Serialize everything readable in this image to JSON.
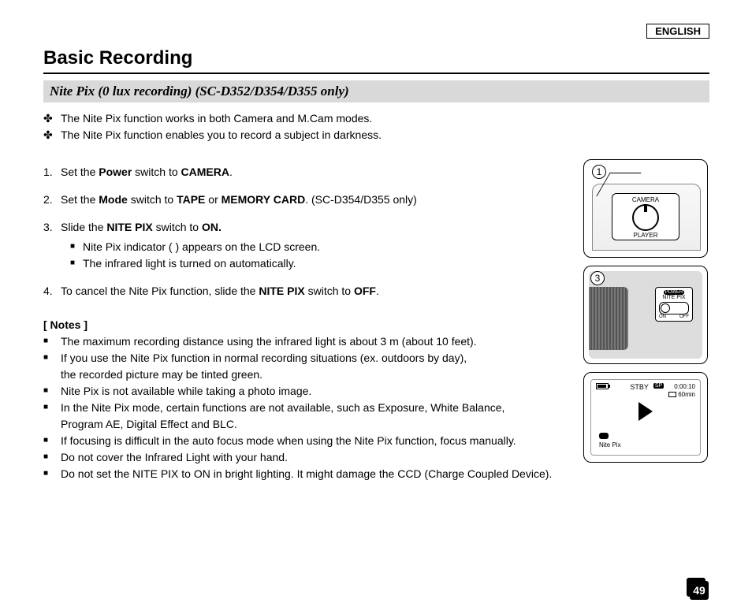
{
  "language_label": "ENGLISH",
  "section_title": "Basic Recording",
  "subsection_title": "Nite Pix (0 lux recording) (SC-D352/D354/D355 only)",
  "intro_marker": "✤",
  "intro": [
    "The Nite Pix function works in both Camera and M.Cam modes.",
    "The Nite Pix function enables you to record a subject in darkness."
  ],
  "steps": [
    {
      "num": "1.",
      "html": "Set the <b>Power</b> switch to <b>CAMERA</b>."
    },
    {
      "num": "2.",
      "html": "Set the <b>Mode</b> switch to <b>TAPE</b> or <b>MEMORY CARD</b>. (SC-D354/D355 only)"
    },
    {
      "num": "3.",
      "html": "Slide the <b>NITE PIX</b> switch to <b>ON.</b>",
      "sub": [
        "Nite Pix indicator (      ) appears on the LCD screen.",
        "The infrared light is turned on automatically."
      ]
    },
    {
      "num": "4.",
      "html": "To cancel the Nite Pix function, slide the <b>NITE PIX</b> switch to <b>OFF</b>."
    }
  ],
  "sub_marker": "■",
  "notes_title": "[ Notes ]",
  "notes_marker": "■",
  "notes": [
    "The maximum recording distance using the infrared light is about 3 m (about 10 feet).",
    "If you use the Nite Pix function in normal recording situations (ex. outdoors by day),\nthe recorded picture may be tinted green.",
    "Nite Pix is not available while taking a photo image.",
    "In the Nite Pix mode, certain functions are not available, such as Exposure, White Balance,\nProgram AE, Digital Effect and BLC.",
    "If focusing is difficult in the auto focus mode when using the Nite Pix function, focus manually.",
    "Do not cover the Infrared Light with your hand.",
    "Do not set the NITE PIX to ON in bright lighting. It might damage the CCD (Charge Coupled Device)."
  ],
  "fig1": {
    "callout": "1",
    "dial_top": "CAMERA",
    "dial_bottom": "PLAYER"
  },
  "fig3": {
    "callout": "3",
    "power_label": "POWER",
    "switch_label": "NITE PIX",
    "on_label": "ON",
    "off_label": "OFF"
  },
  "lcd": {
    "stby": "STBY",
    "sp": "SP",
    "time": "0:00:10",
    "remaining": "60min",
    "mode_label": "Nite Pix"
  },
  "page_number": "49",
  "colors": {
    "subsection_bg": "#d9d9d9",
    "text": "#000000",
    "page_bg": "#ffffff"
  }
}
